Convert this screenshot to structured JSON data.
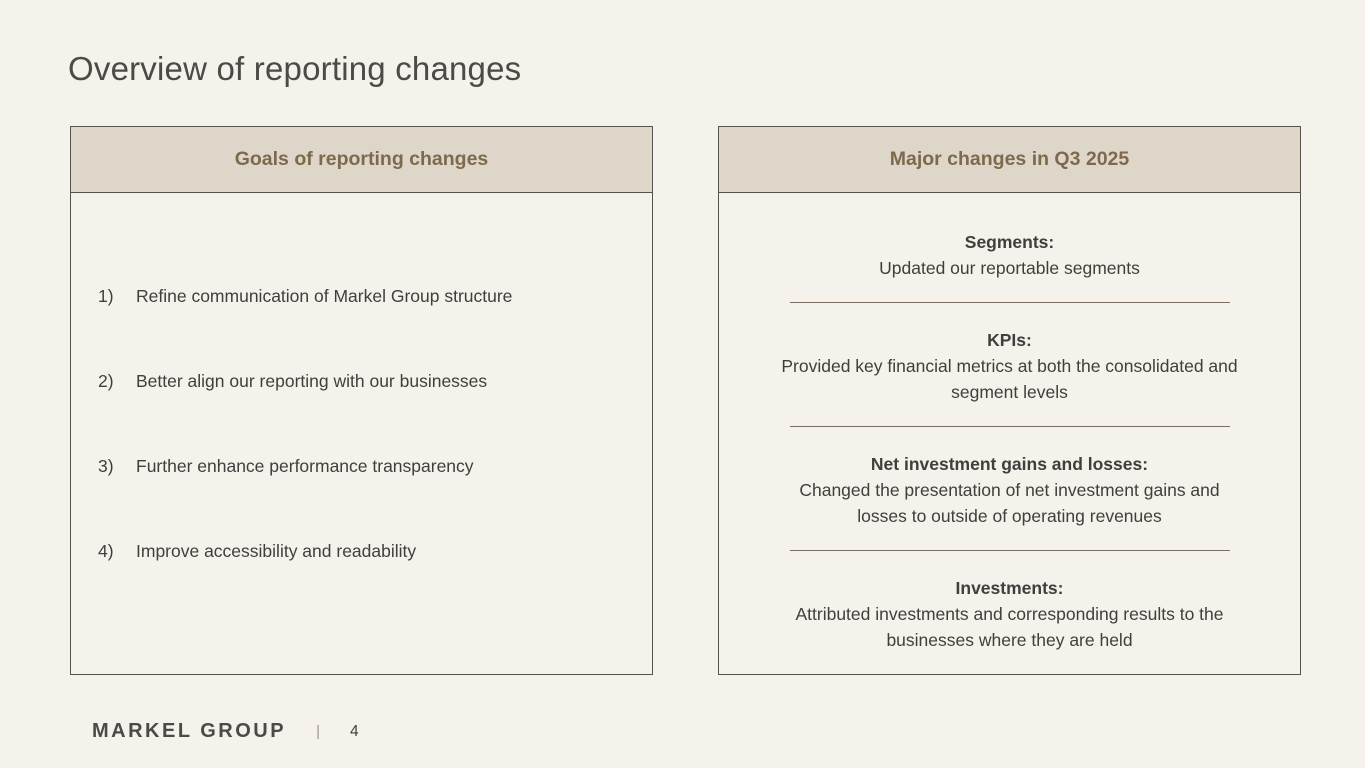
{
  "slide_title": "Overview of reporting changes",
  "left_panel": {
    "header": "Goals of reporting changes",
    "items": [
      {
        "number": "1)",
        "text": "Refine communication of Markel Group structure"
      },
      {
        "number": "2)",
        "text": "Better align our reporting with our businesses"
      },
      {
        "number": "3)",
        "text": "Further enhance performance transparency"
      },
      {
        "number": "4)",
        "text": "Improve accessibility and readability"
      }
    ]
  },
  "right_panel": {
    "header": "Major changes in Q3 2025",
    "sections": [
      {
        "heading": "Segments:",
        "line1": "Updated our reportable segments",
        "line2": ""
      },
      {
        "heading": "KPIs:",
        "line1": "Provided key financial metrics at both the consolidated and",
        "line2": "segment levels"
      },
      {
        "heading": "Net investment gains and losses:",
        "line1": "Changed the presentation of net investment gains and",
        "line2": "losses to outside of operating revenues"
      },
      {
        "heading": "Investments:",
        "line1": "Attributed investments and corresponding results to the",
        "line2": "businesses where they are held"
      }
    ]
  },
  "footer": {
    "logo": "MARKEL GROUP",
    "separator": "|",
    "page_number": "4"
  },
  "colors": {
    "background": "#f5f1eb",
    "panel_header_fill": "#ded7c9",
    "panel_border": "#55534d",
    "panel_header_text": "#7d6a4d",
    "body_text": "#3f3f3d",
    "title_text": "#4a4a47",
    "divider": "#7a6f60"
  }
}
